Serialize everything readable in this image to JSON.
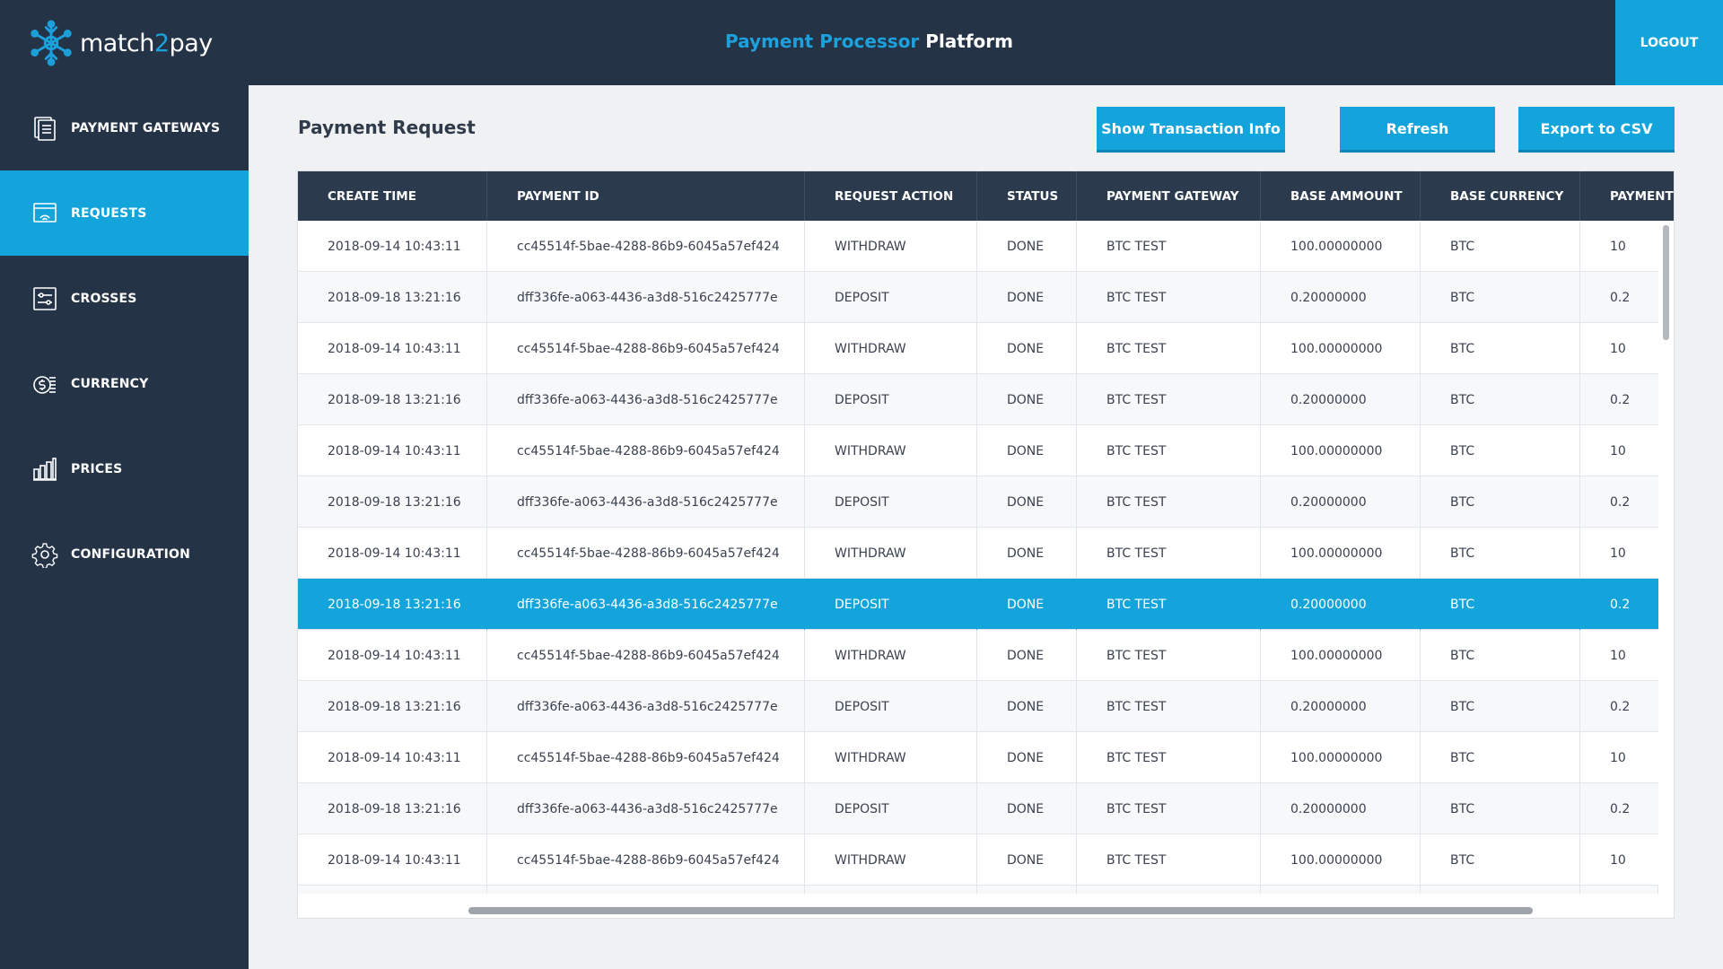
{
  "header": {
    "logo_prefix": "match",
    "logo_two": "2",
    "logo_suffix": "pay",
    "title_part1": "Payment Processor",
    "title_part2": "Platform",
    "logout_label": "LOGOUT"
  },
  "sidebar": {
    "items": [
      {
        "label": "PAYMENT GATEWAYS",
        "icon": "document-list-icon",
        "active": false
      },
      {
        "label": "REQUESTS",
        "icon": "request-monitor-icon",
        "active": true
      },
      {
        "label": "CROSSES",
        "icon": "crosses-sliders-icon",
        "active": false
      },
      {
        "label": "CURRENCY",
        "icon": "currency-coins-icon",
        "active": false
      },
      {
        "label": "PRICES",
        "icon": "bar-chart-icon",
        "active": false
      },
      {
        "label": "CONFIGURATION",
        "icon": "gear-icon",
        "active": false
      }
    ]
  },
  "main": {
    "page_title": "Payment Request",
    "buttons": {
      "show_info": "Show Transaction Info",
      "refresh": "Refresh",
      "export": "Export to CSV"
    }
  },
  "table": {
    "columns": [
      "CREATE TIME",
      "PAYMENT ID",
      "REQUEST ACTION",
      "STATUS",
      "PAYMENT GATEWAY",
      "BASE AMMOUNT",
      "BASE CURRENCY",
      "PAYMENT"
    ],
    "selected_row": 7,
    "rows": [
      [
        "2018-09-14 10:43:11",
        "cc45514f-5bae-4288-86b9-6045a57ef424",
        "WITHDRAW",
        "DONE",
        "BTC TEST",
        "100.00000000",
        "BTC",
        "10"
      ],
      [
        "2018-09-18 13:21:16",
        "dff336fe-a063-4436-a3d8-516c2425777e",
        "DEPOSIT",
        "DONE",
        "BTC TEST",
        "0.20000000",
        "BTC",
        "0.2"
      ],
      [
        "2018-09-14 10:43:11",
        "cc45514f-5bae-4288-86b9-6045a57ef424",
        "WITHDRAW",
        "DONE",
        "BTC TEST",
        "100.00000000",
        "BTC",
        "10"
      ],
      [
        "2018-09-18 13:21:16",
        "dff336fe-a063-4436-a3d8-516c2425777e",
        "DEPOSIT",
        "DONE",
        "BTC TEST",
        "0.20000000",
        "BTC",
        "0.2"
      ],
      [
        "2018-09-14 10:43:11",
        "cc45514f-5bae-4288-86b9-6045a57ef424",
        "WITHDRAW",
        "DONE",
        "BTC TEST",
        "100.00000000",
        "BTC",
        "10"
      ],
      [
        "2018-09-18 13:21:16",
        "dff336fe-a063-4436-a3d8-516c2425777e",
        "DEPOSIT",
        "DONE",
        "BTC TEST",
        "0.20000000",
        "BTC",
        "0.2"
      ],
      [
        "2018-09-14 10:43:11",
        "cc45514f-5bae-4288-86b9-6045a57ef424",
        "WITHDRAW",
        "DONE",
        "BTC TEST",
        "100.00000000",
        "BTC",
        "10"
      ],
      [
        "2018-09-18 13:21:16",
        "dff336fe-a063-4436-a3d8-516c2425777e",
        "DEPOSIT",
        "DONE",
        "BTC TEST",
        "0.20000000",
        "BTC",
        "0.2"
      ],
      [
        "2018-09-14 10:43:11",
        "cc45514f-5bae-4288-86b9-6045a57ef424",
        "WITHDRAW",
        "DONE",
        "BTC TEST",
        "100.00000000",
        "BTC",
        "10"
      ],
      [
        "2018-09-18 13:21:16",
        "dff336fe-a063-4436-a3d8-516c2425777e",
        "DEPOSIT",
        "DONE",
        "BTC TEST",
        "0.20000000",
        "BTC",
        "0.2"
      ],
      [
        "2018-09-14 10:43:11",
        "cc45514f-5bae-4288-86b9-6045a57ef424",
        "WITHDRAW",
        "DONE",
        "BTC TEST",
        "100.00000000",
        "BTC",
        "10"
      ],
      [
        "2018-09-18 13:21:16",
        "dff336fe-a063-4436-a3d8-516c2425777e",
        "DEPOSIT",
        "DONE",
        "BTC TEST",
        "0.20000000",
        "BTC",
        "0.2"
      ],
      [
        "2018-09-14 10:43:11",
        "cc45514f-5bae-4288-86b9-6045a57ef424",
        "WITHDRAW",
        "DONE",
        "BTC TEST",
        "100.00000000",
        "BTC",
        "10"
      ]
    ]
  },
  "colors": {
    "navy": "#253347",
    "accent": "#13a4dc",
    "table_header": "#2c3a4e",
    "background": "#f0f1f3"
  }
}
